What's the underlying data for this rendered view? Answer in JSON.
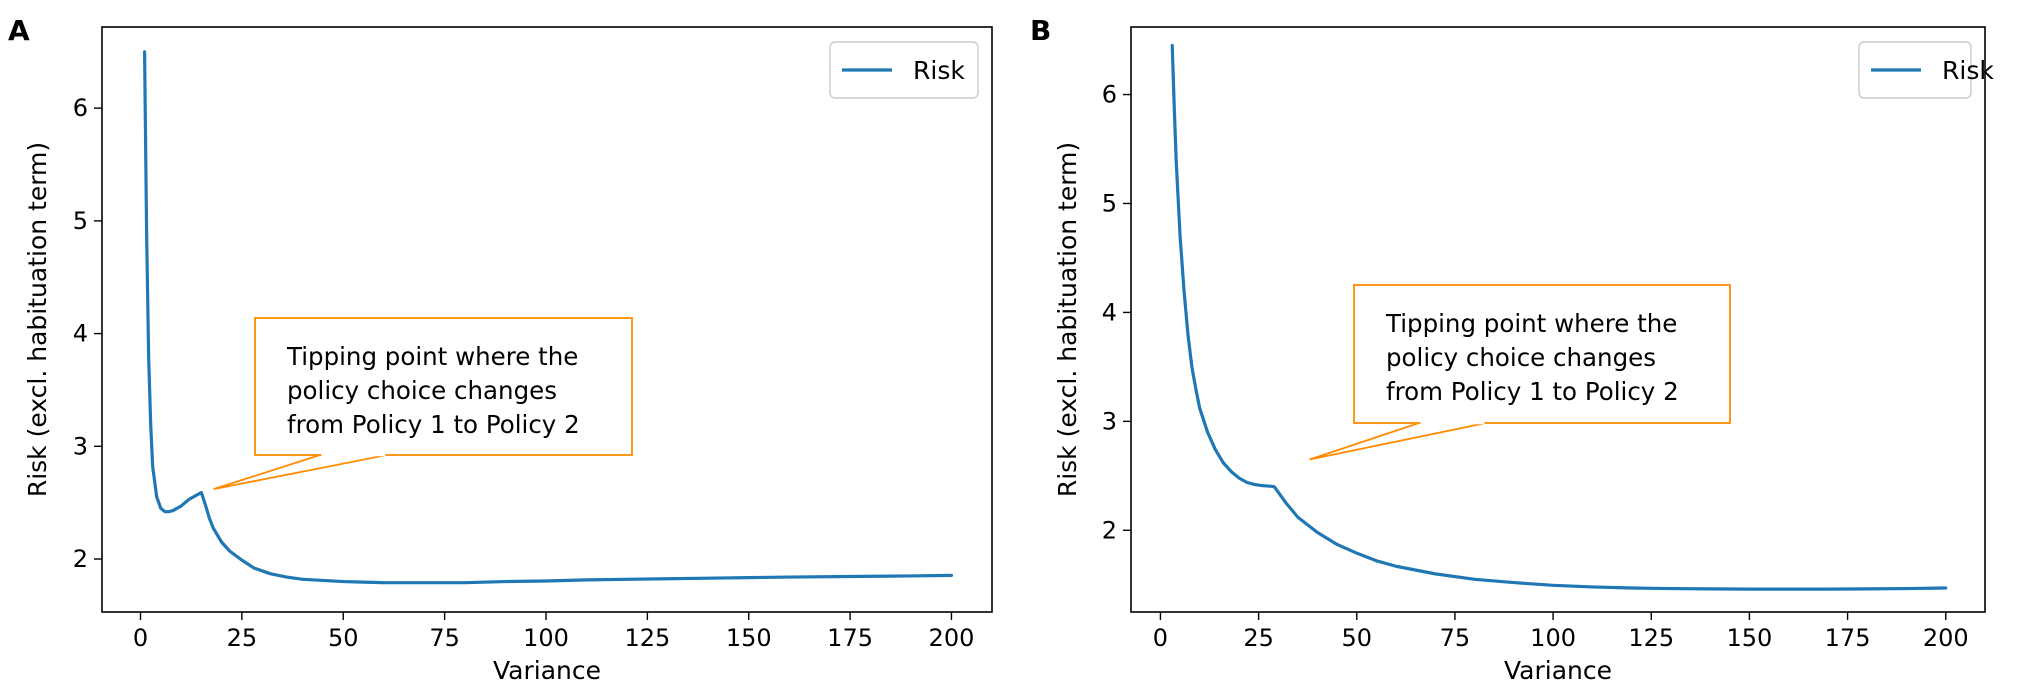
{
  "chart_data": [
    {
      "panel": "A",
      "type": "line",
      "xlabel": "Variance",
      "ylabel": "Risk (excl. habituation term)",
      "xlim": [
        -9.5,
        210
      ],
      "ylim": [
        1.53,
        6.72
      ],
      "xticks": [
        0,
        25,
        50,
        75,
        100,
        125,
        150,
        175,
        200
      ],
      "yticks": [
        2,
        3,
        4,
        5,
        6
      ],
      "legend": {
        "label": "Risk",
        "position": "top-right"
      },
      "series": [
        {
          "name": "Risk",
          "color": "#1f77b4",
          "x": [
            1,
            1.5,
            2,
            2.5,
            3,
            4,
            5,
            6,
            7,
            8,
            9,
            10,
            11,
            12,
            13,
            14,
            15,
            16,
            17,
            18,
            20,
            22,
            25,
            28,
            32,
            36,
            40,
            45,
            50,
            55,
            60,
            65,
            70,
            80,
            90,
            100,
            110,
            120,
            130,
            140,
            150,
            160,
            175,
            190,
            200
          ],
          "y": [
            6.5,
            4.9,
            3.8,
            3.2,
            2.82,
            2.55,
            2.45,
            2.42,
            2.42,
            2.43,
            2.45,
            2.47,
            2.5,
            2.53,
            2.55,
            2.57,
            2.59,
            2.48,
            2.36,
            2.27,
            2.15,
            2.07,
            1.99,
            1.92,
            1.87,
            1.84,
            1.82,
            1.81,
            1.8,
            1.795,
            1.79,
            1.79,
            1.79,
            1.79,
            1.8,
            1.805,
            1.815,
            1.82,
            1.825,
            1.83,
            1.835,
            1.84,
            1.845,
            1.85,
            1.855
          ]
        }
      ],
      "annotation": {
        "lines": [
          "Tipping point where the",
          "policy choice changes",
          "from Policy 1 to Policy 2"
        ],
        "arrow_target": [
          18,
          2.62
        ],
        "text_anchor": [
          28,
          3.95
        ],
        "color": "#ff8c00"
      }
    },
    {
      "panel": "B",
      "type": "line",
      "xlabel": "Variance",
      "ylabel": "Risk (excl. habituation term)",
      "xlim": [
        -7.5,
        210
      ],
      "ylim": [
        1.25,
        6.62
      ],
      "xticks": [
        0,
        25,
        50,
        75,
        100,
        125,
        150,
        175,
        200
      ],
      "yticks": [
        2,
        3,
        4,
        5,
        6
      ],
      "legend": {
        "label": "Risk",
        "position": "top-right"
      },
      "series": [
        {
          "name": "Risk",
          "color": "#1f77b4",
          "x": [
            3,
            3.5,
            4,
            5,
            6,
            7,
            8,
            9,
            10,
            12,
            14,
            16,
            18,
            20,
            22,
            24,
            26,
            28,
            29,
            30,
            32,
            35,
            40,
            45,
            50,
            55,
            60,
            70,
            80,
            90,
            100,
            110,
            120,
            130,
            140,
            150,
            160,
            170,
            180,
            190,
            200
          ],
          "y": [
            6.45,
            5.9,
            5.4,
            4.7,
            4.2,
            3.8,
            3.5,
            3.3,
            3.12,
            2.9,
            2.74,
            2.62,
            2.54,
            2.48,
            2.44,
            2.42,
            2.41,
            2.405,
            2.4,
            2.35,
            2.25,
            2.12,
            1.98,
            1.87,
            1.79,
            1.72,
            1.67,
            1.6,
            1.55,
            1.52,
            1.495,
            1.48,
            1.47,
            1.465,
            1.462,
            1.46,
            1.46,
            1.46,
            1.462,
            1.465,
            1.47
          ]
        }
      ],
      "annotation": {
        "lines": [
          "Tipping point where the",
          "policy choice changes",
          "from Policy 1 to Policy 2"
        ],
        "arrow_target": [
          38,
          2.65
        ],
        "text_anchor": [
          56,
          4.0
        ],
        "color": "#ff8c00"
      }
    }
  ]
}
